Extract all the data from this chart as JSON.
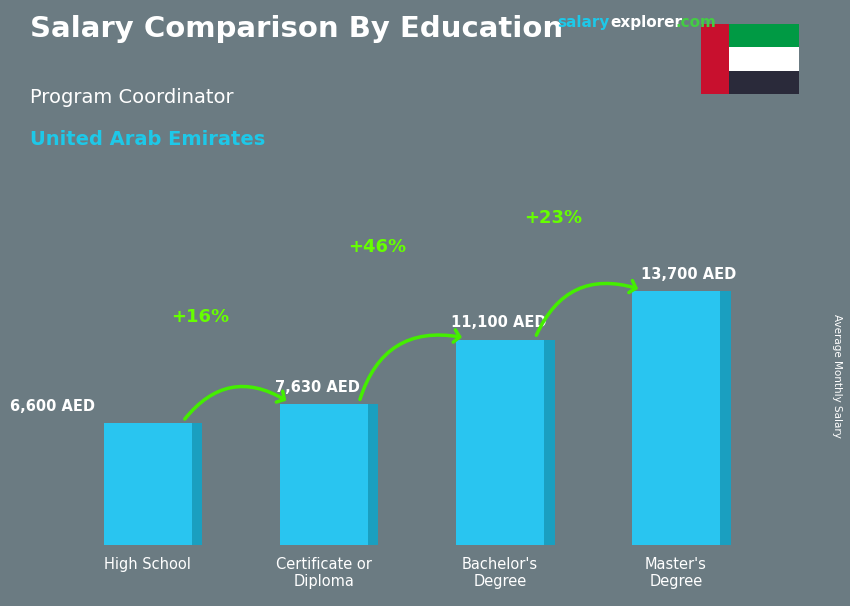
{
  "title_line1": "Salary Comparison By Education",
  "subtitle_line1": "Program Coordinator",
  "subtitle_line2": "United Arab Emirates",
  "ylabel": "Average Monthly Salary",
  "categories": [
    "High School",
    "Certificate or\nDiploma",
    "Bachelor's\nDegree",
    "Master's\nDegree"
  ],
  "values": [
    6600,
    7630,
    11100,
    13700
  ],
  "value_labels": [
    "6,600 AED",
    "7,630 AED",
    "11,100 AED",
    "13,700 AED"
  ],
  "pct_labels": [
    "+16%",
    "+46%",
    "+23%"
  ],
  "bar_face_color": "#29c5f0",
  "bar_side_color": "#1a9fc0",
  "bar_top_color": "#55d8ff",
  "background_color": "#6b7b82",
  "title_color": "#ffffff",
  "subtitle1_color": "#ffffff",
  "subtitle2_color": "#1ec8e8",
  "value_label_color": "#ffffff",
  "pct_color": "#66ff00",
  "arrow_color": "#44ee00",
  "salary_color": "#1ec8e8",
  "explorer_color": "#ffffff",
  "dotcom_color": "#44cc44",
  "ylim": [
    0,
    17000
  ],
  "flag_colors": {
    "red": "#c8102e",
    "white": "#ffffff",
    "green": "#009a44",
    "black": "#1a1a2e"
  }
}
